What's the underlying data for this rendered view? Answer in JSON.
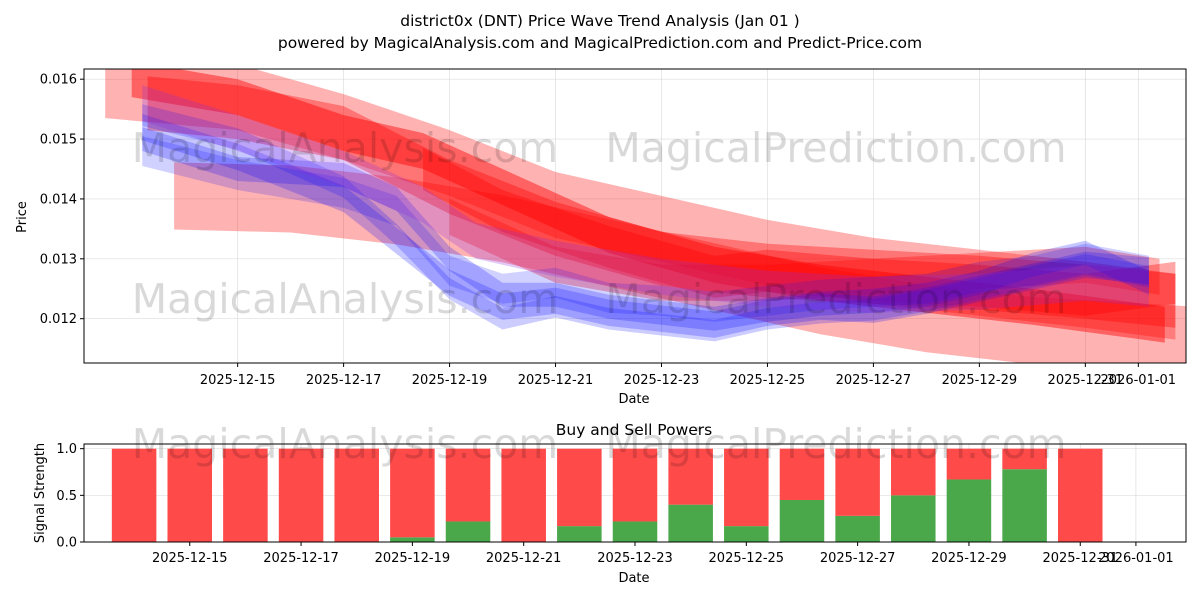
{
  "title_line1": "district0x (DNT) Price Wave Trend Analysis (Jan 01 )",
  "title_line2": "powered by MagicalAnalysis.com and MagicalPrediction.com and Predict-Price.com",
  "watermarks": [
    "MagicalAnalysis.com",
    "MagicalPrediction.com",
    "MagicalAnalysis.com",
    "MagicalPrediction.com",
    "MagicalAnalysis.com",
    "MagicalPrediction.com"
  ],
  "colors": {
    "red": "#ff0000",
    "blue": "#0000ff",
    "buy": "#4aa84a",
    "sell": "#ff4a4a"
  },
  "chart_data": [
    {
      "type": "area",
      "title": "",
      "xlabel": "Date",
      "ylabel": "Price",
      "ylim": [
        0.01126,
        0.01617
      ],
      "x_range_days": [
        -1.9,
        18.9
      ],
      "yticks": [
        0.012,
        0.013,
        0.014,
        0.015,
        0.016
      ],
      "ytick_labels": [
        "0.012",
        "0.013",
        "0.014",
        "0.015",
        "0.016"
      ],
      "xtick_days": [
        1,
        3,
        5,
        7,
        9,
        11,
        13,
        15,
        17,
        18
      ],
      "xtick_labels": [
        "2025-12-15",
        "2025-12-17",
        "2025-12-19",
        "2025-12-21",
        "2025-12-23",
        "2025-12-25",
        "2025-12-27",
        "2025-12-29",
        "2025-12-31",
        "2026-01-01"
      ],
      "grid": true,
      "series": [
        {
          "name": "red-band-1",
          "color": "red",
          "half_width": 0.00055,
          "opacity": 0.3,
          "points": [
            [
              -1.5,
              0.0159
            ],
            [
              1.0,
              0.0157
            ],
            [
              3.0,
              0.0152
            ],
            [
              5.0,
              0.0146
            ],
            [
              7.0,
              0.0139
            ],
            [
              9.0,
              0.0135
            ],
            [
              11.0,
              0.0131
            ],
            [
              13.0,
              0.0128
            ],
            [
              15.0,
              0.0126
            ],
            [
              17.0,
              0.0124
            ],
            [
              18.7,
              0.0122
            ]
          ]
        },
        {
          "name": "red-band-2",
          "color": "red",
          "half_width": 0.00056,
          "opacity": 0.3,
          "points": [
            [
              -0.2,
              0.01405
            ],
            [
              2.0,
              0.014
            ],
            [
              4.0,
              0.0138
            ],
            [
              6.0,
              0.0135
            ],
            [
              8.0,
              0.0131
            ],
            [
              10.0,
              0.0127
            ],
            [
              12.0,
              0.0123
            ],
            [
              14.0,
              0.012
            ],
            [
              16.0,
              0.0118
            ],
            [
              18.9,
              0.01165
            ]
          ]
        },
        {
          "name": "red-band-3",
          "color": "red",
          "half_width": 0.00045,
          "opacity": 0.35,
          "points": [
            [
              -0.7,
              0.0156
            ],
            [
              1.0,
              0.01545
            ],
            [
              3.0,
              0.0151
            ],
            [
              5.0,
              0.0142
            ],
            [
              7.0,
              0.0135
            ],
            [
              9.0,
              0.013
            ],
            [
              11.0,
              0.0128
            ],
            [
              13.0,
              0.0127
            ],
            [
              15.0,
              0.0126
            ],
            [
              17.0,
              0.01245
            ],
            [
              18.7,
              0.0123
            ]
          ]
        },
        {
          "name": "red-band-4",
          "color": "red",
          "half_width": 0.0003,
          "opacity": 0.45,
          "points": [
            [
              -1.0,
              0.016
            ],
            [
              1.0,
              0.0157
            ],
            [
              3.0,
              0.0151
            ],
            [
              4.5,
              0.0148
            ],
            [
              6.0,
              0.0142
            ],
            [
              8.0,
              0.0134
            ],
            [
              10.0,
              0.0129
            ],
            [
              12.0,
              0.0126
            ],
            [
              14.0,
              0.0124
            ],
            [
              16.0,
              0.0122
            ],
            [
              18.5,
              0.0119
            ]
          ]
        },
        {
          "name": "red-band-5",
          "color": "red",
          "half_width": 0.00035,
          "opacity": 0.35,
          "points": [
            [
              4.5,
              0.0145
            ],
            [
              6.0,
              0.0138
            ],
            [
              8.0,
              0.0132
            ],
            [
              10.0,
              0.0127
            ],
            [
              11.0,
              0.0128
            ],
            [
              13.0,
              0.01265
            ],
            [
              15.0,
              0.01255
            ],
            [
              17.0,
              0.0124
            ],
            [
              18.7,
              0.0126
            ]
          ]
        },
        {
          "name": "red-band-6",
          "color": "red",
          "half_width": 0.0003,
          "opacity": 0.3,
          "points": [
            [
              5.0,
              0.0137
            ],
            [
              7.0,
              0.0129
            ],
            [
              9.0,
              0.0126
            ],
            [
              11.0,
              0.0126
            ],
            [
              13.0,
              0.0127
            ],
            [
              15.0,
              0.0128
            ],
            [
              17.0,
              0.0129
            ],
            [
              18.4,
              0.0127
            ]
          ]
        },
        {
          "name": "blue-band-1",
          "color": "blue",
          "half_width": 0.00022,
          "opacity": 0.22,
          "points": [
            [
              -0.8,
              0.0152
            ],
            [
              1.0,
              0.0147
            ],
            [
              3.0,
              0.014
            ],
            [
              4.0,
              0.0133
            ],
            [
              5.0,
              0.0126
            ],
            [
              6.0,
              0.0122
            ],
            [
              7.0,
              0.0123
            ],
            [
              8.0,
              0.0121
            ],
            [
              9.0,
              0.012
            ],
            [
              10.0,
              0.0119
            ],
            [
              11.0,
              0.0121
            ],
            [
              12.0,
              0.0122
            ],
            [
              13.0,
              0.01215
            ],
            [
              14.0,
              0.0123
            ],
            [
              15.0,
              0.0125
            ],
            [
              16.0,
              0.0127
            ],
            [
              17.0,
              0.0129
            ],
            [
              18.2,
              0.0128
            ]
          ]
        },
        {
          "name": "blue-band-2",
          "color": "blue",
          "half_width": 0.0002,
          "opacity": 0.22,
          "points": [
            [
              -0.8,
              0.015
            ],
            [
              1.0,
              0.0145
            ],
            [
              3.0,
              0.0144
            ],
            [
              4.0,
              0.014
            ],
            [
              5.0,
              0.013
            ],
            [
              6.0,
              0.0124
            ],
            [
              7.0,
              0.0124
            ],
            [
              8.0,
              0.0122
            ],
            [
              9.0,
              0.0121
            ],
            [
              10.0,
              0.012
            ],
            [
              11.0,
              0.01215
            ],
            [
              12.0,
              0.01225
            ],
            [
              13.0,
              0.0123
            ],
            [
              14.0,
              0.0124
            ],
            [
              15.0,
              0.0126
            ],
            [
              16.0,
              0.0129
            ],
            [
              17.0,
              0.0131
            ],
            [
              18.2,
              0.0126
            ]
          ]
        },
        {
          "name": "blue-band-3",
          "color": "blue",
          "half_width": 0.00025,
          "opacity": 0.18,
          "points": [
            [
              -0.8,
              0.0148
            ],
            [
              1.0,
              0.0144
            ],
            [
              3.0,
              0.0141
            ],
            [
              4.0,
              0.0138
            ],
            [
              5.0,
              0.0128
            ],
            [
              6.0,
              0.0125
            ],
            [
              7.0,
              0.0126
            ],
            [
              8.0,
              0.01235
            ],
            [
              9.0,
              0.0123
            ],
            [
              10.0,
              0.0122
            ],
            [
              11.0,
              0.0123
            ],
            [
              12.0,
              0.0124
            ],
            [
              13.0,
              0.01245
            ],
            [
              14.0,
              0.0125
            ],
            [
              15.0,
              0.0127
            ],
            [
              16.0,
              0.0128
            ],
            [
              17.0,
              0.013
            ],
            [
              18.2,
              0.0128
            ]
          ]
        },
        {
          "name": "blue-band-4",
          "color": "blue",
          "half_width": 0.00018,
          "opacity": 0.2,
          "points": [
            [
              -0.8,
              0.0154
            ],
            [
              1.0,
              0.015
            ],
            [
              3.0,
              0.0142
            ],
            [
              4.0,
              0.0134
            ],
            [
              5.0,
              0.0125
            ],
            [
              6.0,
              0.012
            ],
            [
              7.0,
              0.0122
            ],
            [
              8.0,
              0.012
            ],
            [
              9.0,
              0.0119
            ],
            [
              10.0,
              0.0118
            ],
            [
              11.0,
              0.012
            ],
            [
              12.0,
              0.0121
            ],
            [
              13.0,
              0.01215
            ],
            [
              14.0,
              0.0123
            ],
            [
              15.0,
              0.0125
            ],
            [
              16.0,
              0.0127
            ],
            [
              17.0,
              0.0129
            ],
            [
              18.2,
              0.0127
            ]
          ]
        },
        {
          "name": "purple-band",
          "color": "purple",
          "half_width": 0.0003,
          "opacity": 0.25,
          "points": [
            [
              -0.8,
              0.0156
            ],
            [
              1.0,
              0.0151
            ],
            [
              3.0,
              0.0145
            ],
            [
              4.5,
              0.0139
            ],
            [
              5.5,
              0.0133
            ],
            [
              7.0,
              0.013
            ],
            [
              9.0,
              0.0127
            ],
            [
              11.0,
              0.0125
            ],
            [
              13.0,
              0.0124
            ],
            [
              15.0,
              0.01245
            ],
            [
              17.0,
              0.0126
            ],
            [
              18.2,
              0.0125
            ]
          ]
        }
      ]
    },
    {
      "type": "bar",
      "title": "Buy and Sell Powers",
      "xlabel": "Date",
      "ylabel": "Signal Strength",
      "ylim": [
        0,
        1.05
      ],
      "yticks": [
        0.0,
        0.5,
        1.0
      ],
      "ytick_labels": [
        "0.0",
        "0.5",
        "1.0"
      ],
      "xtick_labels": [
        "2025-12-15",
        "2025-12-17",
        "2025-12-19",
        "2025-12-21",
        "2025-12-23",
        "2025-12-25",
        "2025-12-27",
        "2025-12-29",
        "2025-12-31",
        "2026-01-01"
      ],
      "xtick_days": [
        1,
        3,
        5,
        7,
        9,
        11,
        13,
        15,
        17,
        18
      ],
      "x_range_days": [
        -0.9,
        18.9
      ],
      "bar_days": [
        0,
        1,
        2,
        3,
        4,
        5,
        6,
        7,
        8,
        9,
        10,
        11,
        12,
        13,
        14,
        15,
        16,
        17,
        18
      ],
      "series": [
        {
          "name": "Buy",
          "color": "buy",
          "values": [
            0,
            0,
            0,
            0,
            0,
            0.05,
            0.22,
            0,
            0.17,
            0.22,
            0.4,
            0.17,
            0.45,
            0.28,
            0.5,
            0.67,
            0.78,
            0,
            0
          ]
        },
        {
          "name": "Sell",
          "color": "sell",
          "values": [
            1,
            1,
            1,
            1,
            1,
            0.95,
            0.78,
            1,
            0.83,
            0.78,
            0.6,
            0.83,
            0.55,
            0.72,
            0.5,
            0.33,
            0.22,
            1,
            0
          ]
        }
      ]
    }
  ]
}
